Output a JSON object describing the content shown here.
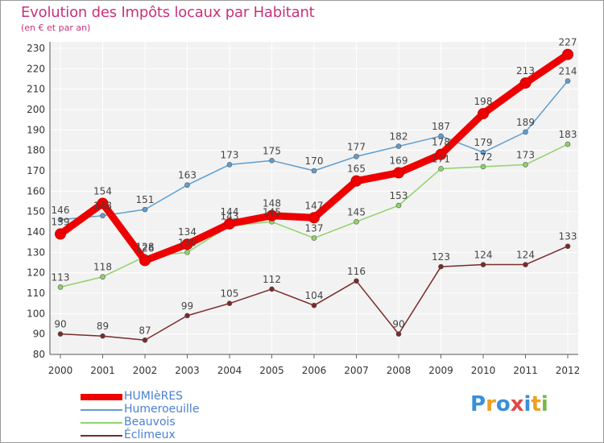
{
  "header": {
    "title": "Evolution des Impôts locaux par Habitant",
    "subtitle": "(en € et par an)"
  },
  "logo": {
    "text": "Proxiti",
    "colors": [
      "#3a8fd8",
      "#f0a020",
      "#3a8fd8",
      "#e04848",
      "#3a8fd8",
      "#f0a020",
      "#7ab848"
    ]
  },
  "chart_data": {
    "type": "line",
    "categories": [
      "2000",
      "2001",
      "2002",
      "2003",
      "2004",
      "2005",
      "2006",
      "2007",
      "2008",
      "2009",
      "2010",
      "2011",
      "2012"
    ],
    "ylim": [
      80,
      230
    ],
    "yticks": [
      80,
      90,
      100,
      110,
      120,
      130,
      140,
      150,
      160,
      170,
      180,
      190,
      200,
      210,
      220,
      230
    ],
    "grid": true,
    "legend_position": "bottom-left",
    "series": [
      {
        "name": "HUMIèRES",
        "color": "#ee0000",
        "values": [
          139,
          154,
          126,
          134,
          144,
          148,
          147,
          165,
          169,
          178,
          198,
          213,
          227
        ]
      },
      {
        "name": "Humeroeuille",
        "color": "#5f9ed1",
        "values": [
          146,
          148,
          151,
          163,
          173,
          175,
          170,
          177,
          182,
          187,
          179,
          189,
          214
        ]
      },
      {
        "name": "Beauvois",
        "color": "#8fd36a",
        "values": [
          113,
          118,
          128,
          130,
          143,
          145,
          137,
          145,
          153,
          171,
          172,
          173,
          183
        ]
      },
      {
        "name": "Éclimeux",
        "color": "#7a2a2a",
        "values": [
          90,
          89,
          87,
          99,
          105,
          112,
          104,
          116,
          90,
          123,
          124,
          124,
          133
        ]
      }
    ]
  }
}
